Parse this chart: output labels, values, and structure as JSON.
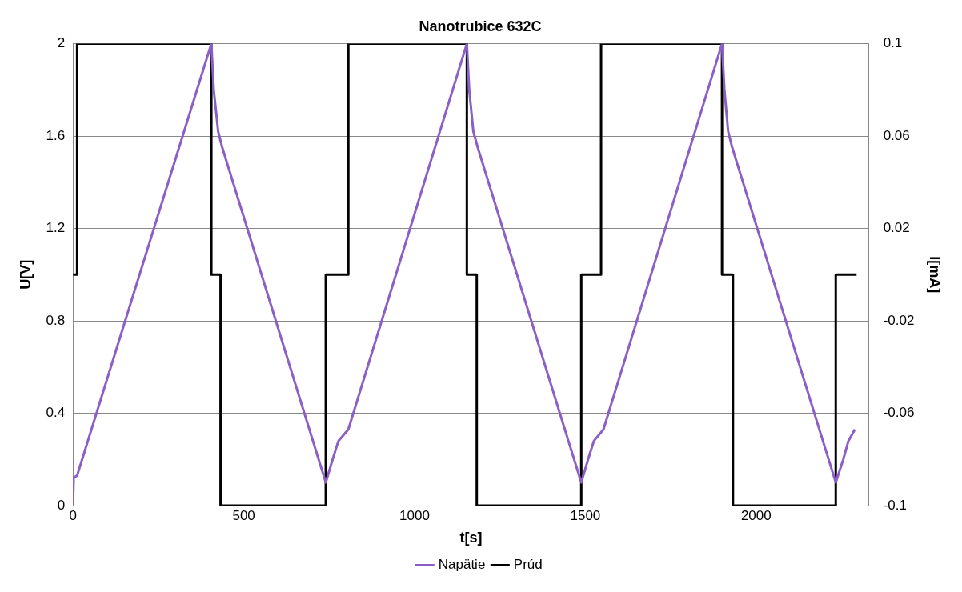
{
  "chart_data": {
    "type": "line",
    "title": "Nanotrubice 632C",
    "xlabel": "t[s]",
    "ylabel": "U[V]",
    "y2label": "I[mA]",
    "xlim": [
      0,
      2330
    ],
    "xticks": [
      0,
      500,
      1000,
      1500,
      2000
    ],
    "ylim": [
      0,
      2
    ],
    "yticks": [
      0,
      0.4,
      0.8,
      1.2,
      1.6,
      2
    ],
    "y2lim": [
      -0.1,
      0.1
    ],
    "y2ticks": [
      -0.1,
      -0.06,
      -0.02,
      0.02,
      0.06,
      0.1
    ],
    "grid": "y",
    "legend": "bottom",
    "marker": "none",
    "line_style": "solid",
    "series": [
      {
        "name": "Napätie",
        "color": "#8b5fc6",
        "x": [
          0,
          2,
          12,
          405,
          412,
          425,
          437,
          740,
          760,
          777,
          806,
          1153,
          1160,
          1172,
          1185,
          1488,
          1508,
          1525,
          1553,
          1900,
          1907,
          1918,
          1930,
          2233,
          2255,
          2270,
          2289
        ],
        "values": [
          0,
          0.12,
          0.13,
          2,
          1.8,
          1.62,
          1.55,
          0.1,
          0.2,
          0.28,
          0.33,
          2,
          1.8,
          1.62,
          1.55,
          0.1,
          0.2,
          0.28,
          0.33,
          2,
          1.8,
          1.62,
          1.55,
          0.1,
          0.2,
          0.28,
          0.33
        ]
      },
      {
        "name": "Prúd",
        "color": "#000000",
        "axis": "y2",
        "x": [
          0,
          12,
          12,
          405,
          405,
          432,
          432,
          740,
          740,
          806,
          806,
          1153,
          1153,
          1182,
          1182,
          1488,
          1488,
          1546,
          1546,
          1900,
          1900,
          1932,
          1932,
          2233,
          2233,
          2294
        ],
        "values": [
          0,
          0,
          0.1,
          0.1,
          0,
          0,
          -0.1,
          -0.1,
          0,
          0,
          0.1,
          0.1,
          0,
          0,
          -0.1,
          -0.1,
          0,
          0,
          0.1,
          0.1,
          0,
          0,
          -0.1,
          -0.1,
          0,
          0
        ]
      }
    ]
  }
}
